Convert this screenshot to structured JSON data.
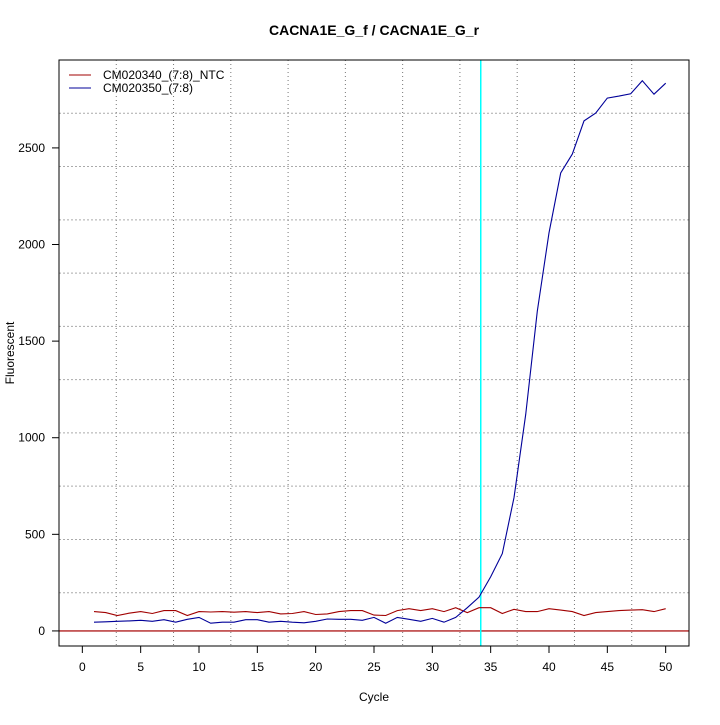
{
  "chart_data": {
    "type": "line",
    "title": "CACNA1E_G_f / CACNA1E_G_r",
    "xlabel": "Cycle",
    "ylabel": "Fluorescent",
    "xlim": [
      -2,
      52
    ],
    "ylim": [
      -78,
      2955
    ],
    "xticks": [
      0,
      5,
      10,
      15,
      20,
      25,
      30,
      35,
      40,
      45,
      50
    ],
    "yticks": [
      0,
      500,
      1000,
      1500,
      2000,
      2500
    ],
    "grid": {
      "on": true,
      "nx": 11,
      "ny": 11,
      "style": "dotted"
    },
    "legend_position": "top-left",
    "threshold_cycle": 34.15,
    "baseline_value": 0,
    "colors": {
      "threshold_line": "#00ffff",
      "baseline": "#b02020"
    },
    "x": [
      1,
      2,
      3,
      4,
      5,
      6,
      7,
      8,
      9,
      10,
      11,
      12,
      13,
      14,
      15,
      16,
      17,
      18,
      19,
      20,
      21,
      22,
      23,
      24,
      25,
      26,
      27,
      28,
      29,
      30,
      31,
      32,
      33,
      34,
      35,
      36,
      37,
      38,
      39,
      40,
      41,
      42,
      43,
      44,
      45,
      46,
      47,
      48,
      49,
      50
    ],
    "series": [
      {
        "name": "CM020340_(7:8)_NTC",
        "color": "#a00000",
        "values": [
          100,
          95,
          80,
          92,
          100,
          90,
          105,
          105,
          80,
          100,
          98,
          100,
          97,
          100,
          95,
          100,
          88,
          90,
          100,
          85,
          88,
          100,
          105,
          105,
          82,
          80,
          105,
          115,
          105,
          115,
          100,
          120,
          95,
          120,
          120,
          90,
          112,
          100,
          100,
          115,
          108,
          100,
          80,
          95,
          100,
          105,
          108,
          110,
          100,
          115
        ]
      },
      {
        "name": "CM020350_(7:8)",
        "color": "#000099",
        "values": [
          45,
          47,
          50,
          52,
          55,
          50,
          58,
          45,
          60,
          70,
          40,
          45,
          45,
          58,
          58,
          45,
          50,
          45,
          42,
          50,
          62,
          60,
          60,
          55,
          70,
          40,
          70,
          60,
          50,
          65,
          45,
          70,
          120,
          175,
          280,
          400,
          690,
          1120,
          1655,
          2060,
          2370,
          2468,
          2640,
          2680,
          2758,
          2768,
          2780,
          2848,
          2778,
          2835
        ]
      }
    ]
  }
}
